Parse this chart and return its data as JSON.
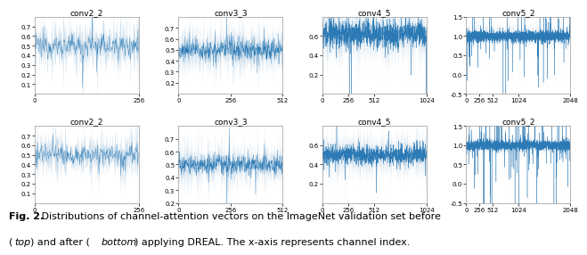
{
  "subplots": [
    {
      "title": "conv2_2",
      "n_channels": 256,
      "row": 0,
      "col": 0,
      "ylim": [
        0.0,
        0.8
      ],
      "yticks": [
        0.1,
        0.2,
        0.3,
        0.4,
        0.5,
        0.6,
        0.7
      ],
      "xticks": [
        0,
        256
      ],
      "mean": 0.5,
      "std": 0.06,
      "spike_prob": 0.05,
      "spike_scale": 0.25
    },
    {
      "title": "conv3_3",
      "n_channels": 512,
      "row": 0,
      "col": 1,
      "ylim": [
        0.1,
        0.8
      ],
      "yticks": [
        0.2,
        0.3,
        0.4,
        0.5,
        0.6,
        0.7
      ],
      "xticks": [
        0,
        256,
        512
      ],
      "mean": 0.5,
      "std": 0.05,
      "spike_prob": 0.03,
      "spike_scale": 0.3
    },
    {
      "title": "conv4_5",
      "n_channels": 1024,
      "row": 0,
      "col": 2,
      "ylim": [
        0.0,
        0.8
      ],
      "yticks": [
        0.2,
        0.4,
        0.6
      ],
      "xticks": [
        0,
        256,
        512,
        1024
      ],
      "mean": 0.62,
      "std": 0.07,
      "spike_prob": 0.04,
      "spike_scale": 0.4
    },
    {
      "title": "conv5_2",
      "n_channels": 2048,
      "row": 0,
      "col": 3,
      "ylim": [
        -0.5,
        1.5
      ],
      "yticks": [
        -0.5,
        0.0,
        0.5,
        1.0,
        1.5
      ],
      "xticks": [
        0,
        256,
        512,
        1024,
        2048
      ],
      "mean": 1.0,
      "std": 0.07,
      "spike_prob": 0.05,
      "spike_scale": 1.0
    },
    {
      "title": "conv2_2",
      "n_channels": 256,
      "row": 1,
      "col": 0,
      "ylim": [
        0.0,
        0.8
      ],
      "yticks": [
        0.1,
        0.2,
        0.3,
        0.4,
        0.5,
        0.6,
        0.7
      ],
      "xticks": [
        0,
        256
      ],
      "mean": 0.5,
      "std": 0.05,
      "spike_prob": 0.04,
      "spike_scale": 0.22
    },
    {
      "title": "conv3_3",
      "n_channels": 512,
      "row": 1,
      "col": 1,
      "ylim": [
        0.2,
        0.8
      ],
      "yticks": [
        0.2,
        0.3,
        0.4,
        0.5,
        0.6,
        0.7
      ],
      "xticks": [
        0,
        256,
        512
      ],
      "mean": 0.5,
      "std": 0.04,
      "spike_prob": 0.02,
      "spike_scale": 0.25
    },
    {
      "title": "conv4_5",
      "n_channels": 1024,
      "row": 1,
      "col": 2,
      "ylim": [
        0.0,
        0.8
      ],
      "yticks": [
        0.2,
        0.4,
        0.6
      ],
      "xticks": [
        0,
        256,
        512,
        1024
      ],
      "mean": 0.5,
      "std": 0.05,
      "spike_prob": 0.03,
      "spike_scale": 0.3
    },
    {
      "title": "conv5_2",
      "n_channels": 2048,
      "row": 1,
      "col": 3,
      "ylim": [
        -0.5,
        1.5
      ],
      "yticks": [
        -0.5,
        0.0,
        0.5,
        1.0,
        1.5
      ],
      "xticks": [
        0,
        256,
        512,
        1024,
        2048
      ],
      "mean": 1.0,
      "std": 0.06,
      "spike_prob": 0.06,
      "spike_scale": 1.2
    }
  ],
  "caption_line1_bold": "Fig. 2.",
  "caption_line1_rest": " Distributions of channel-attention vectors on the ImageNet validation set before",
  "caption_line2_italic": "top",
  "caption_line2_pre": "(",
  "caption_line2_post": ") and after (",
  "caption_line2_italic2": "bottom",
  "caption_line2_end": ") applying DREAL. The x-axis represents channel index.",
  "line_color_dark": "#1a6faf",
  "line_color_light": "#aac8e0",
  "background_color": "#ffffff",
  "title_fontsize": 6.5,
  "tick_fontsize": 5,
  "caption_fontsize": 8,
  "seed": 12345
}
